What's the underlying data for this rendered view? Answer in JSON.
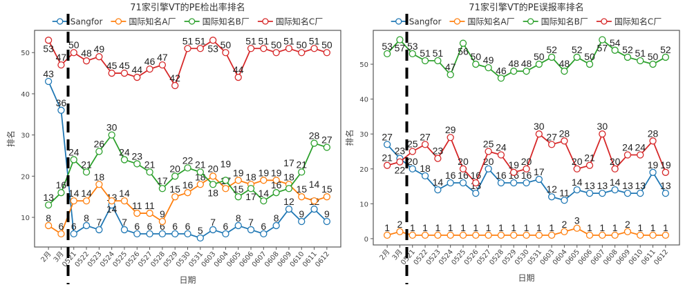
{
  "chart_data": [
    {
      "type": "line",
      "title": "71家引擎VT的PE检出率排名",
      "xlabel": "日期",
      "ylabel": "排名",
      "categories": [
        "2月",
        "3月",
        "0521",
        "0522",
        "0523",
        "0524",
        "0525",
        "0526",
        "0527",
        "0528",
        "0529",
        "0530",
        "0531",
        "0603",
        "0604",
        "0605",
        "0606",
        "0607",
        "0608",
        "0609",
        "0610",
        "0611",
        "0612"
      ],
      "yticks": [
        10,
        20,
        30,
        40,
        50
      ],
      "ylim": [
        2.8,
        55.4
      ],
      "grid": false,
      "legend": "top-right",
      "marker_line_between": [
        "3月",
        "0521"
      ],
      "series": [
        {
          "name": "Sangfor",
          "color": "#1f77b4",
          "values": [
            43,
            36,
            6,
            8,
            7,
            13,
            7,
            6,
            6,
            6,
            6,
            6,
            5,
            7,
            6,
            8,
            7,
            6,
            8,
            12,
            9,
            12,
            9
          ]
        },
        {
          "name": "国际知名A厂",
          "color": "#ff7f0e",
          "values": [
            8,
            6,
            14,
            14,
            18,
            14,
            14,
            11,
            11,
            9,
            15,
            16,
            18,
            20,
            17,
            19,
            18,
            19,
            19,
            18,
            15,
            14,
            15
          ]
        },
        {
          "name": "国际知名B厂",
          "color": "#2ca02c",
          "values": [
            13,
            16,
            24,
            21,
            26,
            30,
            24,
            23,
            21,
            17,
            20,
            22,
            21,
            18,
            19,
            15,
            17,
            14,
            16,
            17,
            21,
            28,
            27
          ]
        },
        {
          "name": "国际知名C厂",
          "color": "#d62728",
          "values": [
            53,
            47,
            50,
            48,
            49,
            45,
            45,
            44,
            46,
            47,
            42,
            51,
            51,
            53,
            50,
            44,
            51,
            51,
            50,
            51,
            50,
            51,
            50
          ]
        }
      ]
    },
    {
      "type": "line",
      "title": "71家引擎VT的PE误报率排名",
      "xlabel": "日期",
      "ylabel": "排名",
      "categories": [
        "2月",
        "3月",
        "0521",
        "0522",
        "0523",
        "0524",
        "0525",
        "0526",
        "0527",
        "0528",
        "0529",
        "0530",
        "0531",
        "0603",
        "0604",
        "0605",
        "0606",
        "0607",
        "0608",
        "0609",
        "0610",
        "0611",
        "0612"
      ],
      "yticks": [
        0,
        10,
        20,
        30,
        40,
        50
      ],
      "ylim": [
        -1.8,
        59.7
      ],
      "grid": false,
      "legend": "top-right",
      "marker_line_between": [
        "3月",
        "0521"
      ],
      "series": [
        {
          "name": "Sangfor",
          "color": "#1f77b4",
          "values": [
            27,
            23,
            20,
            18,
            14,
            16,
            16,
            13,
            20,
            16,
            16,
            16,
            17,
            12,
            11,
            14,
            13,
            13,
            14,
            13,
            13,
            19,
            13
          ]
        },
        {
          "name": "国际知名A厂",
          "color": "#ff7f0e",
          "values": [
            1,
            2,
            1,
            1,
            1,
            1,
            1,
            1,
            1,
            1,
            1,
            1,
            1,
            1,
            2,
            3,
            1,
            1,
            1,
            2,
            1,
            1,
            1
          ]
        },
        {
          "name": "国际知名B厂",
          "color": "#2ca02c",
          "values": [
            53,
            57,
            53,
            51,
            51,
            47,
            56,
            50,
            49,
            46,
            48,
            48,
            50,
            52,
            48,
            52,
            50,
            57,
            54,
            52,
            51,
            50,
            52
          ]
        },
        {
          "name": "国际知名C厂",
          "color": "#d62728",
          "values": [
            21,
            22,
            25,
            27,
            23,
            29,
            20,
            16,
            25,
            24,
            19,
            20,
            30,
            27,
            28,
            20,
            21,
            30,
            20,
            24,
            24,
            28,
            19
          ]
        }
      ]
    }
  ]
}
